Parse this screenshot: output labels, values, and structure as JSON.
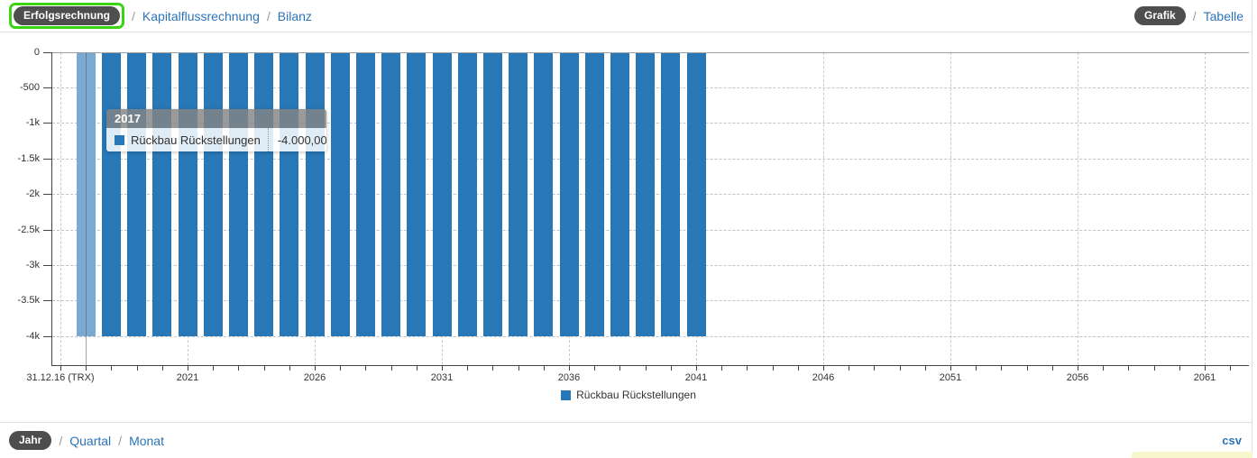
{
  "top_nav": {
    "separator": "/",
    "tabs": [
      {
        "label": "Erfolgsrechnung",
        "active": true,
        "highlighted": true
      },
      {
        "label": "Kapitalflussrechnung",
        "active": false
      },
      {
        "label": "Bilanz",
        "active": false
      }
    ],
    "view_toggle": [
      {
        "label": "Grafik",
        "active": true
      },
      {
        "label": "Tabelle",
        "active": false
      }
    ]
  },
  "chart_data": {
    "type": "bar",
    "title": "",
    "series": [
      {
        "name": "Rückbau Rückstellungen",
        "color": "#2878b8",
        "hover_color": "#7aa9d1"
      }
    ],
    "x": [
      2017,
      2018,
      2019,
      2020,
      2021,
      2022,
      2023,
      2024,
      2025,
      2026,
      2027,
      2028,
      2029,
      2030,
      2031,
      2032,
      2033,
      2034,
      2035,
      2036,
      2037,
      2038,
      2039,
      2040,
      2041
    ],
    "values": [
      -4000,
      -4000,
      -4000,
      -4000,
      -4000,
      -4000,
      -4000,
      -4000,
      -4000,
      -4000,
      -4000,
      -4000,
      -4000,
      -4000,
      -4000,
      -4000,
      -4000,
      -4000,
      -4000,
      -4000,
      -4000,
      -4000,
      -4000,
      -4000,
      -4000
    ],
    "highlighted_x": 2017,
    "x_axis": {
      "first_label": "31.12.16 (TRX)",
      "first_year": 2016,
      "major_labels": [
        "2021",
        "2026",
        "2031",
        "2036",
        "2041",
        "2046",
        "2051",
        "2056",
        "2061"
      ],
      "last_tick_year": 2062
    },
    "y_axis": {
      "min": -4000,
      "max": 0,
      "tick_step": 500,
      "tick_labels": [
        "0",
        "-500",
        "-1k",
        "-1.5k",
        "-2k",
        "-2.5k",
        "-3k",
        "-3.5k",
        "-4k"
      ]
    },
    "tooltip": {
      "title": "2017",
      "series": "Rückbau Rückstellungen",
      "value": "-4.000,00"
    },
    "legend": {
      "label": "Rückbau Rückstellungen",
      "position": "bottom-center"
    },
    "grid": true
  },
  "bottom_nav": {
    "separator": "/",
    "period_tabs": [
      {
        "label": "Jahr",
        "active": true
      },
      {
        "label": "Quartal",
        "active": false
      },
      {
        "label": "Monat",
        "active": false
      }
    ],
    "export_label": "csv"
  },
  "colors": {
    "link": "#2d73b9",
    "pill_bg": "#4e4e4e",
    "highlight_green": "#3bd411",
    "bar": "#2878b8",
    "bar_hover": "#7aa9d1",
    "strip_yellow": "#f7f7cd"
  }
}
